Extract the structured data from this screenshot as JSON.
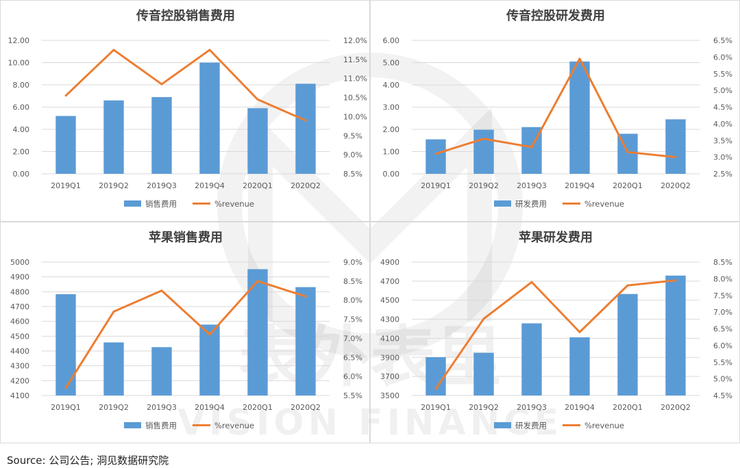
{
  "source": "Source: 公司公告; 洞见数据研究院",
  "watermark": {
    "cn_text": "表外表里",
    "en_text": "VISION FINANCE"
  },
  "colors": {
    "bar": "#5b9bd5",
    "line": "#ed7d31",
    "grid": "#d9d9d9",
    "text": "#595959"
  },
  "chart_data": [
    {
      "type": "bar",
      "title": "传音控股销售费用",
      "categories": [
        "2019Q1",
        "2019Q2",
        "2019Q3",
        "2019Q4",
        "2020Q1",
        "2020Q2"
      ],
      "series": [
        {
          "name": "销售费用",
          "type": "bar",
          "axis": "left",
          "values": [
            5.2,
            6.6,
            6.9,
            10.0,
            5.9,
            8.1
          ]
        },
        {
          "name": "%revenue",
          "type": "line",
          "axis": "right",
          "values": [
            10.55,
            11.75,
            10.85,
            11.75,
            10.45,
            9.9
          ]
        }
      ],
      "ylim": [
        0,
        12
      ],
      "yticks": [
        "0.00",
        "2.00",
        "4.00",
        "6.00",
        "8.00",
        "10.00",
        "12.00"
      ],
      "y2lim": [
        8.5,
        12.0
      ],
      "y2ticks": [
        "8.5%",
        "9.0%",
        "9.5%",
        "10.0%",
        "10.5%",
        "11.0%",
        "11.5%",
        "12.0%"
      ],
      "legend": "bottom"
    },
    {
      "type": "bar",
      "title": "传音控股研发费用",
      "categories": [
        "2019Q1",
        "2019Q2",
        "2019Q3",
        "2019Q4",
        "2020Q1",
        "2020Q2"
      ],
      "series": [
        {
          "name": "研发费用",
          "type": "bar",
          "axis": "left",
          "values": [
            1.55,
            1.98,
            2.1,
            5.05,
            1.8,
            2.45
          ]
        },
        {
          "name": "%revenue",
          "type": "line",
          "axis": "right",
          "values": [
            3.1,
            3.55,
            3.3,
            5.95,
            3.15,
            3.0
          ]
        }
      ],
      "ylim": [
        0,
        6
      ],
      "yticks": [
        "0.00",
        "1.00",
        "2.00",
        "3.00",
        "4.00",
        "5.00",
        "6.00"
      ],
      "y2lim": [
        2.5,
        6.5
      ],
      "y2ticks": [
        "2.5%",
        "3.0%",
        "3.5%",
        "4.0%",
        "4.5%",
        "5.0%",
        "5.5%",
        "6.0%",
        "6.5%"
      ],
      "legend": "bottom"
    },
    {
      "type": "bar",
      "title": "苹果销售费用",
      "categories": [
        "2019Q1",
        "2019Q2",
        "2019Q3",
        "2019Q4",
        "2020Q1",
        "2020Q2"
      ],
      "series": [
        {
          "name": "销售费用",
          "type": "bar",
          "axis": "left",
          "values": [
            4783,
            4458,
            4426,
            4578,
            4952,
            4831
          ]
        },
        {
          "name": "%revenue",
          "type": "line",
          "axis": "right",
          "values": [
            5.7,
            7.7,
            8.25,
            7.1,
            8.5,
            8.1
          ]
        }
      ],
      "ylim": [
        4100,
        5000
      ],
      "yticks": [
        "4100",
        "4200",
        "4300",
        "4400",
        "4500",
        "4600",
        "4700",
        "4800",
        "4900",
        "5000"
      ],
      "y2lim": [
        5.5,
        9.0
      ],
      "y2ticks": [
        "5.5%",
        "6.0%",
        "6.5%",
        "7.0%",
        "7.5%",
        "8.0%",
        "8.5%",
        "9.0%"
      ],
      "legend": "bottom"
    },
    {
      "type": "bar",
      "title": "苹果研发费用",
      "categories": [
        "2019Q1",
        "2019Q2",
        "2019Q3",
        "2019Q4",
        "2020Q1",
        "2020Q2"
      ],
      "series": [
        {
          "name": "研发费用",
          "type": "bar",
          "axis": "left",
          "values": [
            3902,
            3948,
            4257,
            4110,
            4565,
            4758
          ]
        },
        {
          "name": "%revenue",
          "type": "line",
          "axis": "right",
          "values": [
            4.7,
            6.8,
            7.9,
            6.4,
            7.8,
            7.95
          ]
        }
      ],
      "ylim": [
        3500,
        4900
      ],
      "yticks": [
        "3500",
        "3700",
        "3900",
        "4100",
        "4300",
        "4500",
        "4700",
        "4900"
      ],
      "y2lim": [
        4.5,
        8.5
      ],
      "y2ticks": [
        "4.5%",
        "5.0%",
        "5.5%",
        "6.0%",
        "6.5%",
        "7.0%",
        "7.5%",
        "8.0%",
        "8.5%"
      ],
      "legend": "bottom"
    }
  ]
}
